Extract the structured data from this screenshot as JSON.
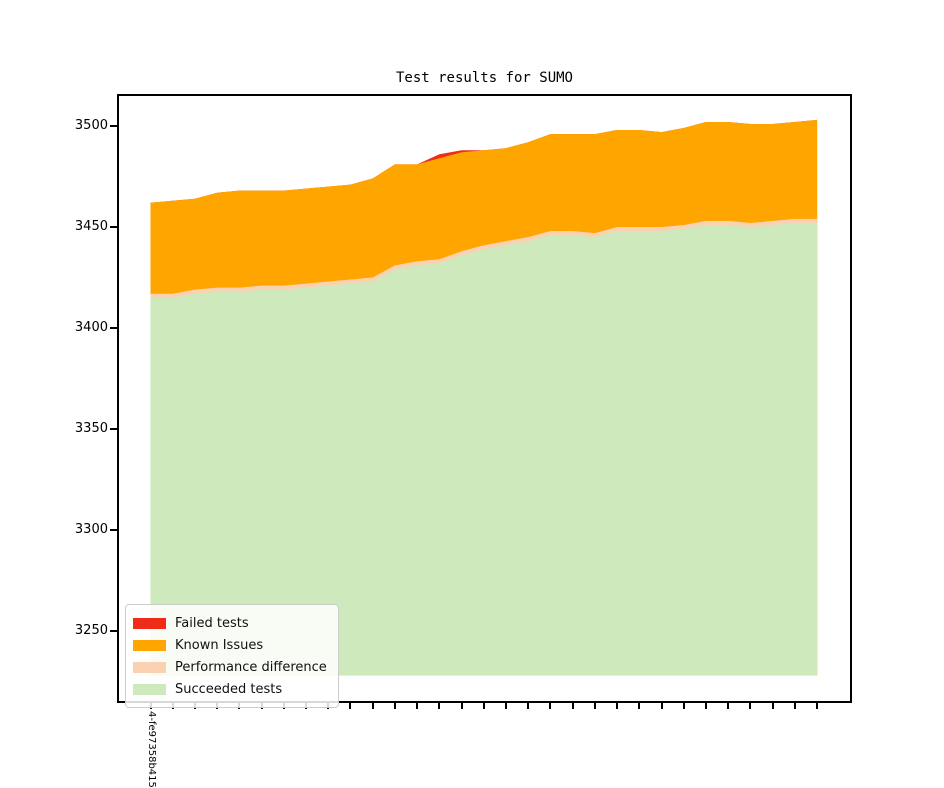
{
  "title": "Test results for SUMO",
  "colors": {
    "failed": "#ee2c18",
    "known_issues": "#ffa500",
    "performance_difference": "#fad2b2",
    "succeeded": "#cee9bb",
    "background": "#ffffff",
    "spine": "#000000",
    "legend_border": "#cccccc"
  },
  "x_axis": {
    "first_label": "4-fe97358b415",
    "tick_count": 31
  },
  "y_axis": {
    "ticks": [
      3500,
      3450,
      3400,
      3350,
      3300,
      3250
    ]
  },
  "legend": {
    "items": [
      {
        "label": "Failed tests",
        "color": "#ee2c18"
      },
      {
        "label": "Known Issues",
        "color": "#ffa500"
      },
      {
        "label": "Performance difference",
        "color": "#fad2b2"
      },
      {
        "label": "Succeeded tests",
        "color": "#cee9bb"
      }
    ]
  },
  "chart_data": {
    "type": "area",
    "stacked": true,
    "title": "Test results for SUMO",
    "n_points": 31,
    "x_first_tick_label": "4-fe97358b415",
    "baseline_value": 3228,
    "ylim": [
      3214,
      3516
    ],
    "yticks": [
      3250,
      3300,
      3350,
      3400,
      3450,
      3500
    ],
    "legend_position": "lower left",
    "series": [
      {
        "name": "Succeeded tests",
        "color": "#cee9bb",
        "top": [
          3415,
          3415,
          3417,
          3418,
          3418,
          3419,
          3419,
          3420,
          3421,
          3422,
          3423,
          3429,
          3431,
          3432,
          3436,
          3439,
          3441,
          3443,
          3446,
          3446,
          3445,
          3448,
          3448,
          3448,
          3449,
          3451,
          3451,
          3450,
          3451,
          3452,
          3452
        ],
        "count": [
          3415,
          3415,
          3417,
          3418,
          3418,
          3419,
          3419,
          3420,
          3421,
          3422,
          3423,
          3429,
          3431,
          3432,
          3436,
          3439,
          3441,
          3443,
          3446,
          3446,
          3445,
          3448,
          3448,
          3448,
          3449,
          3451,
          3451,
          3450,
          3451,
          3452,
          3452
        ]
      },
      {
        "name": "Performance difference",
        "color": "#fad2b2",
        "top": [
          3417,
          3417,
          3419,
          3420,
          3420,
          3421,
          3421,
          3422,
          3423,
          3424,
          3425,
          3431,
          3433,
          3434,
          3438,
          3441,
          3443,
          3445,
          3448,
          3448,
          3447,
          3450,
          3450,
          3450,
          3451,
          3453,
          3453,
          3452,
          3453,
          3454,
          3454
        ],
        "count": [
          2,
          2,
          2,
          2,
          2,
          2,
          2,
          2,
          2,
          2,
          2,
          2,
          2,
          2,
          2,
          2,
          2,
          2,
          2,
          2,
          2,
          2,
          2,
          2,
          2,
          2,
          2,
          2,
          2,
          2,
          2
        ]
      },
      {
        "name": "Known Issues",
        "color": "#ffa500",
        "top": [
          3462,
          3463,
          3464,
          3467,
          3468,
          3468,
          3468,
          3469,
          3470,
          3471,
          3474,
          3481,
          3481,
          3484,
          3487,
          3488,
          3489,
          3492,
          3496,
          3496,
          3496,
          3498,
          3498,
          3497,
          3499,
          3502,
          3502,
          3501,
          3501,
          3502,
          3503
        ],
        "count": [
          45,
          46,
          45,
          47,
          48,
          47,
          47,
          47,
          47,
          47,
          49,
          50,
          48,
          50,
          49,
          47,
          46,
          47,
          48,
          48,
          49,
          48,
          48,
          47,
          48,
          49,
          49,
          49,
          48,
          48,
          49
        ]
      },
      {
        "name": "Failed tests",
        "color": "#ee2c18",
        "top": [
          3462,
          3463,
          3464,
          3467,
          3468,
          3468,
          3468,
          3469,
          3470,
          3471,
          3474,
          3481,
          3481,
          3486,
          3488,
          3488,
          3489,
          3492,
          3496,
          3496,
          3496,
          3498,
          3498,
          3497,
          3499,
          3502,
          3502,
          3501,
          3501,
          3502,
          3503
        ],
        "count": [
          0,
          0,
          0,
          0,
          0,
          0,
          0,
          0,
          0,
          0,
          0,
          0,
          0,
          2,
          1,
          0,
          0,
          0,
          0,
          0,
          0,
          0,
          0,
          0,
          0,
          0,
          0,
          0,
          0,
          0,
          0
        ]
      }
    ]
  }
}
